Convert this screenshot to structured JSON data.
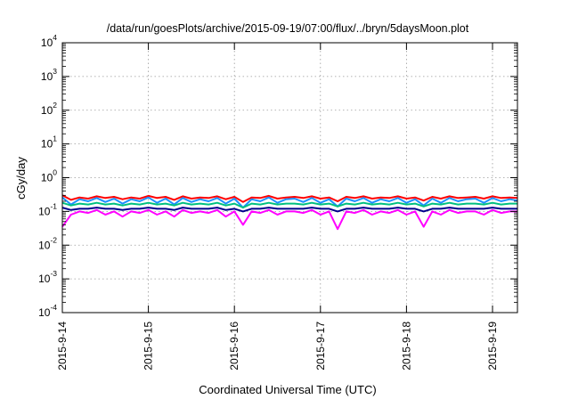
{
  "chart_data": {
    "type": "line",
    "title": "/data/run/goesPlots/archive/2015-09-19/07:00/flux/../bryn/5daysMoon.plot",
    "xlabel": "Coordinated Universal Time (UTC)",
    "ylabel": "cGy/day",
    "yscale": "log",
    "ylim": [
      0.0001,
      10000
    ],
    "xlim": [
      "2015-9-14 00:00",
      "2015-9-19 07:00"
    ],
    "grid": true,
    "legend": "none",
    "x_tick_labels": [
      "2015-9-14",
      "2015-9-15",
      "2015-9-16",
      "2015-9-17",
      "2015-9-18",
      "2015-9-19"
    ],
    "y_ticks": [
      {
        "base": "10",
        "exp": "-4"
      },
      {
        "base": "10",
        "exp": "-3"
      },
      {
        "base": "10",
        "exp": "-2"
      },
      {
        "base": "10",
        "exp": "-1"
      },
      {
        "base": "10",
        "exp": "0"
      },
      {
        "base": "10",
        "exp": "1"
      },
      {
        "base": "10",
        "exp": "2"
      },
      {
        "base": "10",
        "exp": "3"
      },
      {
        "base": "10",
        "exp": "4"
      }
    ],
    "x_days": [
      0.0,
      0.1,
      0.2,
      0.3,
      0.4,
      0.5,
      0.6,
      0.7,
      0.8,
      0.9,
      1.0,
      1.1,
      1.2,
      1.3,
      1.4,
      1.5,
      1.6,
      1.7,
      1.8,
      1.9,
      2.0,
      2.1,
      2.2,
      2.3,
      2.4,
      2.5,
      2.6,
      2.7,
      2.8,
      2.9,
      3.0,
      3.1,
      3.2,
      3.3,
      3.4,
      3.5,
      3.6,
      3.7,
      3.8,
      3.9,
      4.0,
      4.1,
      4.2,
      4.3,
      4.4,
      4.5,
      4.6,
      4.7,
      4.8,
      4.9,
      5.0,
      5.1,
      5.2,
      5.29
    ],
    "series": [
      {
        "color": "#ff0000",
        "values": [
          0.3,
          0.22,
          0.26,
          0.24,
          0.28,
          0.25,
          0.27,
          0.23,
          0.26,
          0.24,
          0.29,
          0.25,
          0.27,
          0.22,
          0.28,
          0.24,
          0.26,
          0.25,
          0.28,
          0.23,
          0.27,
          0.19,
          0.26,
          0.25,
          0.29,
          0.24,
          0.26,
          0.27,
          0.25,
          0.28,
          0.24,
          0.26,
          0.2,
          0.27,
          0.25,
          0.28,
          0.24,
          0.26,
          0.25,
          0.28,
          0.24,
          0.26,
          0.21,
          0.27,
          0.24,
          0.28,
          0.25,
          0.26,
          0.27,
          0.24,
          0.28,
          0.25,
          0.26,
          0.25
        ]
      },
      {
        "color": "#1e90ff",
        "values": [
          0.26,
          0.16,
          0.23,
          0.2,
          0.25,
          0.19,
          0.24,
          0.17,
          0.23,
          0.2,
          0.26,
          0.18,
          0.24,
          0.16,
          0.25,
          0.19,
          0.23,
          0.2,
          0.25,
          0.17,
          0.24,
          0.13,
          0.23,
          0.2,
          0.26,
          0.18,
          0.23,
          0.24,
          0.19,
          0.25,
          0.18,
          0.23,
          0.14,
          0.24,
          0.2,
          0.25,
          0.18,
          0.23,
          0.2,
          0.25,
          0.18,
          0.23,
          0.15,
          0.24,
          0.18,
          0.25,
          0.2,
          0.23,
          0.24,
          0.18,
          0.25,
          0.2,
          0.23,
          0.21
        ]
      },
      {
        "color": "#00c080",
        "values": [
          0.18,
          0.15,
          0.17,
          0.16,
          0.18,
          0.16,
          0.17,
          0.15,
          0.17,
          0.16,
          0.18,
          0.16,
          0.17,
          0.15,
          0.18,
          0.16,
          0.17,
          0.16,
          0.18,
          0.15,
          0.17,
          0.13,
          0.17,
          0.16,
          0.18,
          0.16,
          0.17,
          0.17,
          0.16,
          0.18,
          0.16,
          0.17,
          0.14,
          0.17,
          0.16,
          0.18,
          0.16,
          0.17,
          0.16,
          0.18,
          0.16,
          0.17,
          0.14,
          0.17,
          0.16,
          0.18,
          0.16,
          0.17,
          0.17,
          0.16,
          0.18,
          0.16,
          0.17,
          0.17
        ]
      },
      {
        "color": "#00008b",
        "values": [
          0.13,
          0.11,
          0.12,
          0.12,
          0.13,
          0.12,
          0.12,
          0.11,
          0.12,
          0.12,
          0.13,
          0.12,
          0.12,
          0.11,
          0.13,
          0.12,
          0.12,
          0.12,
          0.13,
          0.11,
          0.12,
          0.1,
          0.12,
          0.12,
          0.13,
          0.12,
          0.12,
          0.12,
          0.12,
          0.13,
          0.12,
          0.12,
          0.1,
          0.12,
          0.12,
          0.13,
          0.12,
          0.12,
          0.12,
          0.13,
          0.12,
          0.12,
          0.1,
          0.12,
          0.12,
          0.13,
          0.12,
          0.12,
          0.12,
          0.12,
          0.13,
          0.12,
          0.12,
          0.12
        ]
      },
      {
        "color": "#ff00ff",
        "values": [
          0.035,
          0.08,
          0.1,
          0.09,
          0.11,
          0.08,
          0.1,
          0.07,
          0.1,
          0.09,
          0.11,
          0.08,
          0.1,
          0.07,
          0.11,
          0.09,
          0.1,
          0.09,
          0.11,
          0.07,
          0.1,
          0.04,
          0.1,
          0.09,
          0.11,
          0.08,
          0.1,
          0.1,
          0.09,
          0.11,
          0.08,
          0.1,
          0.03,
          0.1,
          0.09,
          0.11,
          0.08,
          0.1,
          0.09,
          0.11,
          0.08,
          0.1,
          0.035,
          0.1,
          0.08,
          0.11,
          0.09,
          0.1,
          0.1,
          0.08,
          0.11,
          0.09,
          0.1,
          0.1
        ]
      }
    ]
  }
}
